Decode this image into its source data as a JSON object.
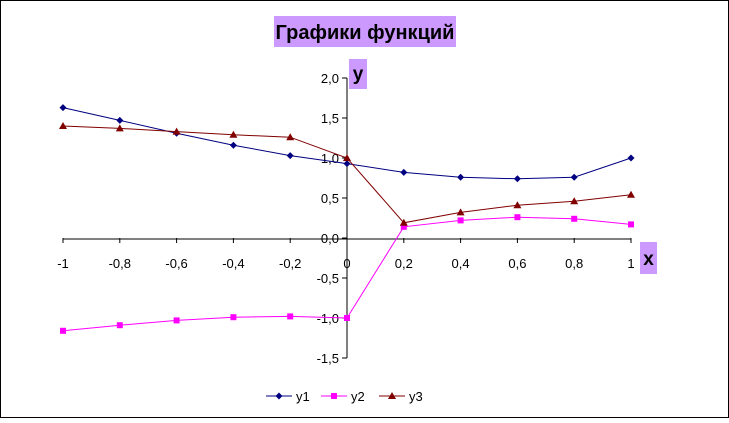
{
  "chart_data": {
    "type": "line",
    "title": "Графики функций",
    "xlabel": "x",
    "ylabel": "y",
    "x": [
      -1,
      -0.8,
      -0.6,
      -0.4,
      -0.2,
      0,
      0.2,
      0.4,
      0.6,
      0.8,
      1
    ],
    "xlim": [
      -1,
      1
    ],
    "ylim": [
      -1.5,
      2.0
    ],
    "x_ticks": [
      -1,
      -0.8,
      -0.6,
      -0.4,
      -0.2,
      0,
      0.2,
      0.4,
      0.6,
      0.8,
      1
    ],
    "x_tick_labels": [
      "-1",
      "-0,8",
      "-0,6",
      "-0,4",
      "-0,2",
      "0",
      "0,2",
      "0,4",
      "0,6",
      "0,8",
      "1"
    ],
    "y_ticks": [
      2.0,
      1.5,
      1.0,
      0.5,
      0.0,
      -0.5,
      -1.0,
      -1.5
    ],
    "y_tick_labels": [
      "2,0",
      "1,5",
      "1,0",
      "0,5",
      "0,0",
      "-0,5",
      "-1,0",
      "-1,5"
    ],
    "grid": false,
    "legend_position": "bottom",
    "series": [
      {
        "name": "y1",
        "color": "#000080",
        "marker": "diamond",
        "values": [
          1.63,
          1.47,
          1.31,
          1.16,
          1.03,
          0.93,
          0.82,
          0.76,
          0.74,
          0.76,
          1.0
        ]
      },
      {
        "name": "y2",
        "color": "#ff00ff",
        "marker": "square",
        "values": [
          -1.16,
          -1.09,
          -1.03,
          -0.99,
          -0.98,
          -1.0,
          0.14,
          0.22,
          0.26,
          0.24,
          0.17
        ]
      },
      {
        "name": "y3",
        "color": "#800000",
        "marker": "triangle",
        "values": [
          1.4,
          1.37,
          1.33,
          1.29,
          1.26,
          1.0,
          0.19,
          0.32,
          0.41,
          0.46,
          0.54
        ]
      }
    ]
  },
  "colors": {
    "label_highlight": "#cc99ff",
    "axis": "#000000",
    "background": "#ffffff"
  }
}
